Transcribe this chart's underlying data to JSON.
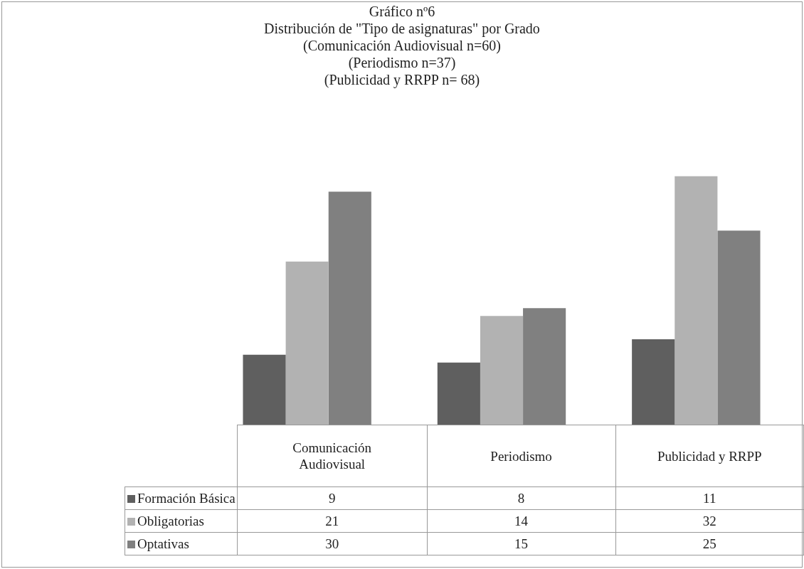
{
  "chart_data": {
    "type": "bar",
    "title": "Gráfico nº6",
    "subtitle": "Distribución de \"Tipo de asignaturas\" por Grado\n(Comunicación Audiovisual n=60)\n(Periodismo n=37)\n(Publicidad y RRPP n= 68)",
    "categories": [
      "Comunicación Audiovisual",
      "Periodismo",
      "Publicidad y RRPP"
    ],
    "series": [
      {
        "name": "Formación Básica",
        "color": "#5f5f5f",
        "values": [
          9,
          8,
          11
        ]
      },
      {
        "name": "Obligatorias",
        "color": "#b2b2b2",
        "values": [
          21,
          14,
          32
        ]
      },
      {
        "name": "Optativas",
        "color": "#808080",
        "values": [
          30,
          15,
          25
        ]
      }
    ],
    "data_labels": true,
    "legend": "bottom"
  }
}
